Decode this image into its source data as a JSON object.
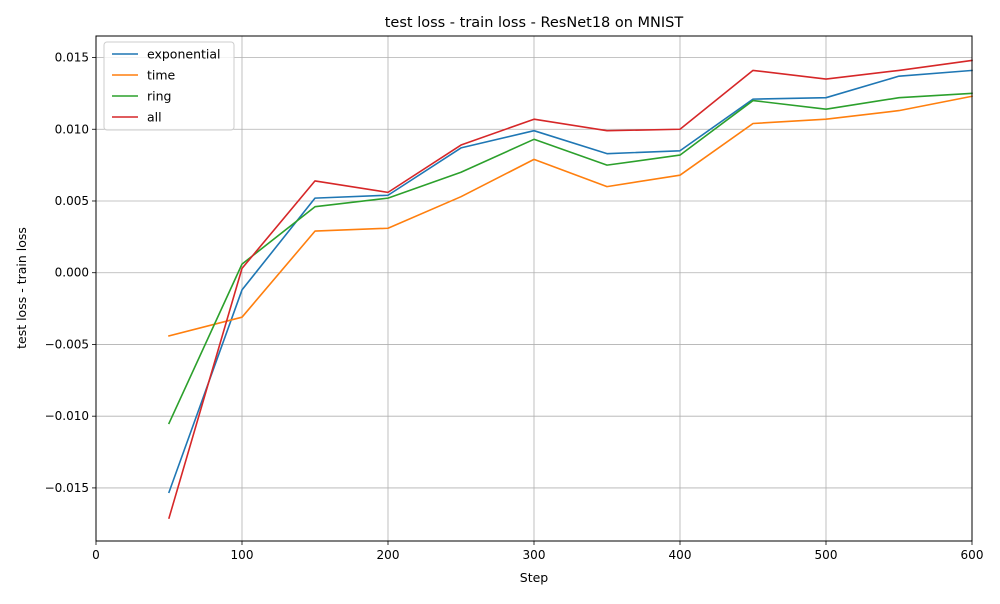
{
  "chart_data": {
    "type": "line",
    "title": "test loss - train loss - ResNet18 on MNIST",
    "xlabel": "Step",
    "ylabel": "test loss - train loss",
    "xlim": [
      0,
      600
    ],
    "ylim": [
      -0.0187,
      0.0165
    ],
    "xticks": [
      0,
      100,
      200,
      300,
      400,
      500,
      600
    ],
    "xtick_labels": [
      "0",
      "100",
      "200",
      "300",
      "400",
      "500",
      "600"
    ],
    "yticks": [
      -0.015,
      -0.01,
      -0.005,
      0.0,
      0.005,
      0.01,
      0.015
    ],
    "ytick_labels": [
      "−0.015",
      "−0.010",
      "−0.005",
      "0.000",
      "0.005",
      "0.010",
      "0.015"
    ],
    "grid": true,
    "legend_position": "top-left",
    "x": [
      50,
      100,
      150,
      200,
      250,
      300,
      350,
      400,
      450,
      500,
      550,
      600
    ],
    "series": [
      {
        "name": "exponential",
        "color": "#1f77b4",
        "values": [
          -0.0153,
          -0.0012,
          0.0052,
          0.0054,
          0.0087,
          0.0099,
          0.0083,
          0.0085,
          0.0121,
          0.0122,
          0.0137,
          0.0141
        ]
      },
      {
        "name": "time",
        "color": "#ff7f0e",
        "values": [
          -0.0044,
          -0.0031,
          0.0029,
          0.0031,
          0.0053,
          0.0079,
          0.006,
          0.0068,
          0.0104,
          0.0107,
          0.0113,
          0.0123
        ]
      },
      {
        "name": "ring",
        "color": "#2ca02c",
        "values": [
          -0.0105,
          0.0006,
          0.0046,
          0.0052,
          0.007,
          0.0093,
          0.0075,
          0.0082,
          0.012,
          0.0114,
          0.0122,
          0.0125
        ]
      },
      {
        "name": "all",
        "color": "#d62728",
        "values": [
          -0.0171,
          0.0003,
          0.0064,
          0.0056,
          0.0089,
          0.0107,
          0.0099,
          0.01,
          0.0141,
          0.0135,
          0.0141,
          0.0148
        ]
      }
    ]
  }
}
